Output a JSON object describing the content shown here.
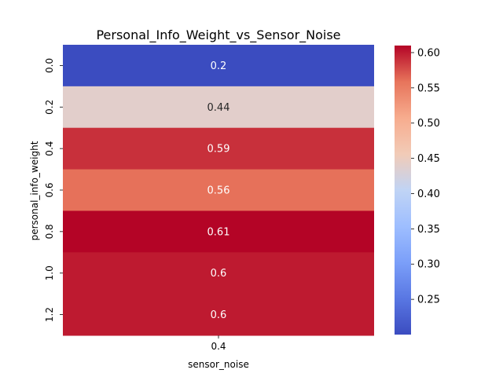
{
  "chart_data": {
    "type": "heatmap",
    "title": "Personal_Info_Weight_vs_Sensor_Noise",
    "xlabel": "sensor_noise",
    "ylabel": "personal_info_weight",
    "x_categories": [
      "0.4"
    ],
    "y_categories": [
      "0.0",
      "0.2",
      "0.4",
      "0.6",
      "0.8",
      "1.0",
      "1.2"
    ],
    "values": [
      [
        0.2
      ],
      [
        0.44
      ],
      [
        0.59
      ],
      [
        0.56
      ],
      [
        0.61
      ],
      [
        0.6
      ],
      [
        0.6
      ]
    ],
    "cell_labels": [
      "0.2",
      "0.44",
      "0.59",
      "0.56",
      "0.61",
      "0.6",
      "0.6"
    ],
    "colormap": "coolwarm",
    "vmin": 0.2,
    "vmax": 0.61,
    "colorbar_ticks": [
      0.25,
      0.3,
      0.35,
      0.4,
      0.45,
      0.5,
      0.55,
      0.6
    ],
    "colorbar_tick_labels": [
      "0.25",
      "0.30",
      "0.35",
      "0.40",
      "0.45",
      "0.50",
      "0.55",
      "0.60"
    ]
  }
}
